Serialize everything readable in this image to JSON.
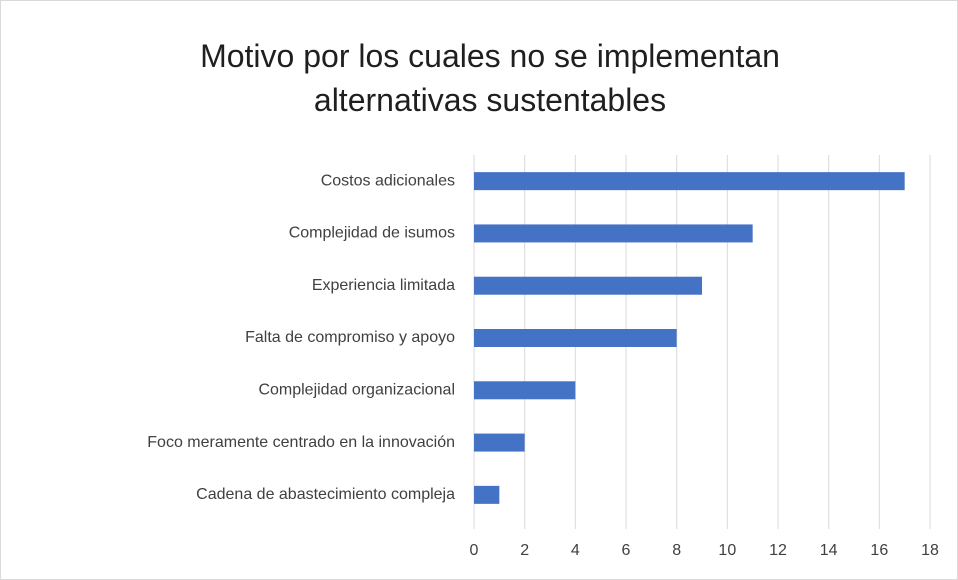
{
  "chart_data": {
    "type": "bar",
    "orientation": "horizontal",
    "title": "Motivo por los cuales no se implementan alternativas sustentables",
    "categories": [
      "Costos adicionales",
      "Complejidad de isumos",
      "Experiencia limitada",
      "Falta de compromiso y apoyo",
      "Complejidad organizacional",
      "Foco meramente centrado en la innovación",
      "Cadena de abastecimiento compleja"
    ],
    "values": [
      17,
      11,
      9,
      8,
      4,
      2,
      1
    ],
    "color": "#4472c4",
    "xlim": [
      0,
      18
    ],
    "xticks": [
      0,
      2,
      4,
      6,
      8,
      10,
      12,
      14,
      16,
      18
    ],
    "grid": true
  }
}
